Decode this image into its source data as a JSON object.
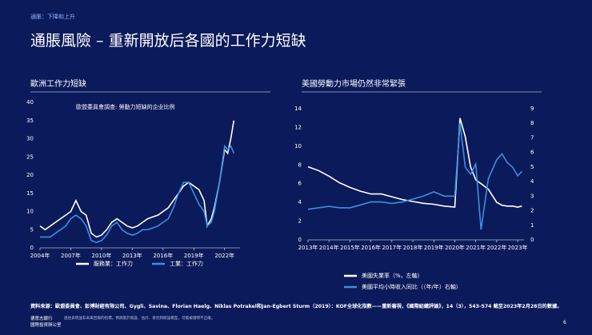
{
  "header": {
    "kicker": "通脹：下降和上升",
    "title": "通脹風險 – 重新開放后各國的工作力短缺"
  },
  "chart_data": [
    {
      "type": "line",
      "title": "歐洲工作力短缺",
      "subtitle": "歐盟委員會調查: 勞動力短缺的企业比例",
      "legend": "bottom",
      "x": [
        2004,
        2004.5,
        2005,
        2005.5,
        2006,
        2006.5,
        2007,
        2007.5,
        2008,
        2008.5,
        2009,
        2009.5,
        2010,
        2010.5,
        2011,
        2011.5,
        2012,
        2012.5,
        2013,
        2013.5,
        2014,
        2014.5,
        2015,
        2015.5,
        2016,
        2016.5,
        2017,
        2017.5,
        2018,
        2018.5,
        2019,
        2019.5,
        2020,
        2020.3,
        2020.7,
        2021,
        2021.5,
        2022,
        2022.3,
        2022.6,
        2022.9
      ],
      "series": [
        {
          "name": "服務業：工作力",
          "color": "#ffffff",
          "values": [
            6,
            5,
            6,
            7,
            8,
            9,
            10,
            13,
            10,
            9,
            4,
            3,
            3.5,
            5,
            7,
            8,
            7,
            6,
            5.5,
            6,
            7,
            8,
            8.5,
            9,
            10,
            11,
            13,
            15,
            17,
            18,
            17,
            16,
            13,
            6,
            8,
            11,
            18,
            27,
            26,
            30,
            35
          ]
        },
        {
          "name": "工業：工作力",
          "color": "#3d8fe0",
          "values": [
            3,
            3,
            3,
            4,
            5,
            6,
            8,
            9,
            8,
            6,
            2,
            1.5,
            2,
            3.5,
            6,
            7,
            5,
            4,
            3.5,
            4,
            5,
            5,
            5.5,
            6,
            7,
            8,
            11,
            15,
            18,
            18,
            15,
            12,
            10,
            6,
            7,
            10,
            18,
            28,
            27,
            28,
            26
          ]
        }
      ],
      "xlim": [
        2004,
        2023.5
      ],
      "xticks": [
        {
          "value": 2004,
          "label": "2004年"
        },
        {
          "value": 2007,
          "label": "2007年"
        },
        {
          "value": 2010,
          "label": "2010年"
        },
        {
          "value": 2013,
          "label": "2013年"
        },
        {
          "value": 2016,
          "label": "2016年"
        },
        {
          "value": 2019,
          "label": "2019年"
        },
        {
          "value": 2022,
          "label": "2022年"
        }
      ],
      "ylim": [
        0,
        40
      ],
      "yticks": [
        0,
        5,
        10,
        15,
        20,
        25,
        30,
        35,
        40
      ]
    },
    {
      "type": "line",
      "title": "美國勞動力市場仍然非常緊張",
      "legend": "below",
      "x": [
        2013,
        2013.5,
        2014,
        2014.5,
        2015,
        2015.5,
        2016,
        2016.5,
        2017,
        2017.5,
        2018,
        2018.5,
        2019,
        2019.5,
        2020,
        2020.25,
        2020.5,
        2020.75,
        2021,
        2021.25,
        2021.6,
        2022,
        2022.25,
        2022.5,
        2022.75,
        2023,
        2023.2
      ],
      "series": [
        {
          "name": "美國失業率（%，左軸）",
          "color": "#ffffff",
          "axis": "y",
          "values": [
            7.8,
            7.4,
            6.8,
            6.1,
            5.6,
            5.2,
            4.9,
            4.9,
            4.6,
            4.3,
            4.1,
            3.9,
            3.8,
            3.6,
            3.5,
            13,
            11,
            7.8,
            6.4,
            6.0,
            5.4,
            4.0,
            3.7,
            3.6,
            3.6,
            3.5,
            3.6
          ]
        },
        {
          "name": "美國平均小時收入同比（（年/年）右軸）",
          "color": "#3d8fe0",
          "axis": "y2",
          "values": [
            2.1,
            2.2,
            2.3,
            2.2,
            2.2,
            2.4,
            2.6,
            2.6,
            2.5,
            2.6,
            2.8,
            3.0,
            3.3,
            3.0,
            3.0,
            8.0,
            5.0,
            4.5,
            5.2,
            0.7,
            4.2,
            5.5,
            5.9,
            5.3,
            5.0,
            4.4,
            4.7
          ]
        }
      ],
      "xlim": [
        2013,
        2023.3
      ],
      "xticks": [
        {
          "value": 2013,
          "label": "2013年"
        },
        {
          "value": 2014,
          "label": "2014年"
        },
        {
          "value": 2015,
          "label": "2015年"
        },
        {
          "value": 2016,
          "label": "2016年"
        },
        {
          "value": 2017,
          "label": "2017年"
        },
        {
          "value": 2018,
          "label": "2018年"
        },
        {
          "value": 2019,
          "label": "2019年"
        },
        {
          "value": 2020,
          "label": "2020年"
        },
        {
          "value": 2021,
          "label": "2021年"
        },
        {
          "value": 2022,
          "label": "2022年"
        },
        {
          "value": 2023,
          "label": "2023年"
        }
      ],
      "ylim": [
        0,
        14
      ],
      "yticks": [
        0,
        2,
        4,
        6,
        8,
        10,
        12,
        14
      ],
      "y2lim": [
        0,
        9
      ],
      "y2ticks": [
        0,
        1,
        2,
        3,
        4,
        5,
        6,
        7,
        8,
        9
      ]
    }
  ],
  "footer": {
    "source": "資料來源：歐盟委員會、彭博財經有限公司、Gygli、Savina、Florian Haelg、Niklas Potrakel和Jan-Egbert Sturm（2019）：KOF全球化指數——重新審視，《國際組織評論》，14（3），543-574 截至2023年2月28日的數據。",
    "disclaimer": "過往表現並非未來回報的指標。預測基於假設、估計、意見和假設模型，可能被證明不正確。",
    "brand": [
      "德意志銀行",
      "國際投資辦公室"
    ],
    "page": "6"
  }
}
